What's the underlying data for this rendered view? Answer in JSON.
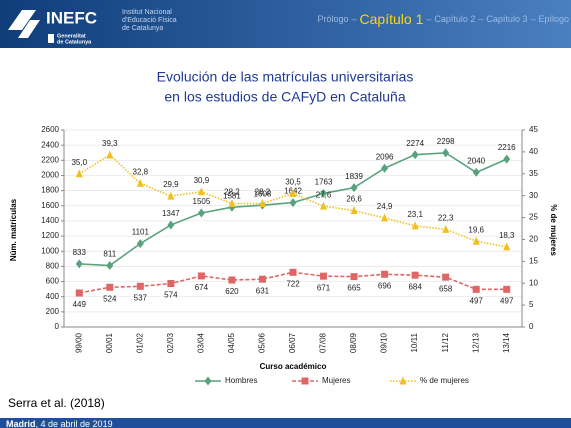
{
  "header": {
    "logo": "INEFC",
    "institution": [
      "Institut Nacional",
      "d'Educació Física",
      "de Catalunya"
    ],
    "government": [
      "Generalitat",
      "de Catalunya"
    ],
    "nav": [
      "Prólogo",
      "Capítulo 1",
      "Capítulo 2",
      "Capítulo 3",
      "Epílogo"
    ],
    "nav_separator": "–",
    "nav_current": 1
  },
  "chart_data": {
    "type": "line",
    "title": [
      "Evolución de las matrículas universitarias",
      "en los estudios de CAFyD en Cataluña"
    ],
    "x_label": "Curso académico",
    "y_label": "Núm. matrículas",
    "y2_label": "% de mujeres",
    "categories": [
      "99/00",
      "00/01",
      "01/02",
      "02/03",
      "03/04",
      "04/05",
      "05/06",
      "06/07",
      "07/08",
      "08/09",
      "09/10",
      "10/11",
      "11/12",
      "12/13",
      "13/14"
    ],
    "series": [
      {
        "name": "Hombres",
        "color": "#5aa27c",
        "marker": "diamond",
        "dash": "solid",
        "label_side": "above",
        "values": [
          833,
          811,
          1101,
          1347,
          1505,
          1581,
          1608,
          1642,
          1763,
          1839,
          2096,
          2274,
          2298,
          2040,
          2216
        ]
      },
      {
        "name": "Mujeres",
        "color": "#e06666",
        "marker": "square",
        "dash": "dashed",
        "label_side": "below",
        "values": [
          449,
          524,
          537,
          574,
          674,
          620,
          631,
          722,
          671,
          665,
          696,
          684,
          658,
          497,
          497
        ]
      },
      {
        "name": "% de mujeres",
        "color": "#f0c020",
        "marker": "triangle",
        "dash": "dotted",
        "label_side": "above",
        "axis": "y2",
        "values": [
          35.0,
          39.3,
          32.8,
          29.9,
          30.9,
          28.2,
          28.2,
          30.5,
          27.6,
          26.6,
          24.9,
          23.1,
          22.3,
          19.6,
          18.3
        ],
        "value_labels": [
          "35,0",
          "39,3",
          "32,8",
          "29,9",
          "30,9",
          "28,2",
          "28,2",
          "30,5",
          "27,6",
          "26,6",
          "24,9",
          "23,1",
          "22,3",
          "19,6",
          "18,3"
        ]
      }
    ],
    "ylim": [
      0,
      2600
    ],
    "yticks": [
      0,
      200,
      400,
      600,
      800,
      1000,
      1200,
      1400,
      1600,
      1800,
      2000,
      2200,
      2400,
      2600
    ],
    "y2lim": [
      0,
      45
    ],
    "y2ticks": [
      0,
      5,
      10,
      15,
      20,
      25,
      30,
      35,
      40,
      45
    ],
    "grid": true,
    "legend": "bottom"
  },
  "source": "Serra et al. (2018)",
  "footer": {
    "city": "Madrid",
    "date": ", 4 de abril de 2019"
  }
}
